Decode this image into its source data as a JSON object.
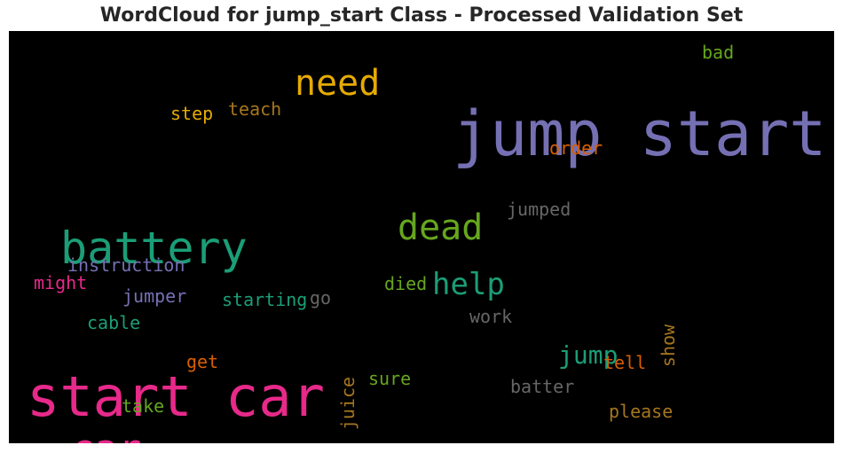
{
  "chart_data": {
    "type": "wordcloud",
    "title": "WordCloud for jump_start Class - Processed Validation Set",
    "background": "#000000",
    "words": [
      {
        "text": "jump start",
        "color": "#7570b3",
        "vertical": false
      },
      {
        "text": "start car",
        "color": "#e7298a",
        "vertical": false
      },
      {
        "text": "battery",
        "color": "#1b9e77",
        "vertical": false
      },
      {
        "text": "need",
        "color": "#e6ab02",
        "vertical": false
      },
      {
        "text": "dead",
        "color": "#66a61e",
        "vertical": false
      },
      {
        "text": "car",
        "color": "#e7298a",
        "vertical": false
      },
      {
        "text": "help",
        "color": "#1b9e77",
        "vertical": false
      },
      {
        "text": "jump",
        "color": "#1b9e77",
        "vertical": false
      },
      {
        "text": "bad",
        "color": "#66a61e",
        "vertical": false
      },
      {
        "text": "teach",
        "color": "#a6761d",
        "vertical": false
      },
      {
        "text": "step",
        "color": "#e6ab02",
        "vertical": false
      },
      {
        "text": "order",
        "color": "#d95f02",
        "vertical": false
      },
      {
        "text": "jumped",
        "color": "#666666",
        "vertical": false
      },
      {
        "text": "instruction",
        "color": "#7570b3",
        "vertical": false
      },
      {
        "text": "might",
        "color": "#e7298a",
        "vertical": false
      },
      {
        "text": "jumper",
        "color": "#7570b3",
        "vertical": false
      },
      {
        "text": "starting",
        "color": "#1b9e77",
        "vertical": false
      },
      {
        "text": "go",
        "color": "#666666",
        "vertical": false
      },
      {
        "text": "died",
        "color": "#66a61e",
        "vertical": false
      },
      {
        "text": "cable",
        "color": "#1b9e77",
        "vertical": false
      },
      {
        "text": "work",
        "color": "#666666",
        "vertical": false
      },
      {
        "text": "show",
        "color": "#a6761d",
        "vertical": true
      },
      {
        "text": "get",
        "color": "#d95f02",
        "vertical": false
      },
      {
        "text": "juice",
        "color": "#a6761d",
        "vertical": true
      },
      {
        "text": "tell",
        "color": "#d95f02",
        "vertical": false
      },
      {
        "text": "sure",
        "color": "#66a61e",
        "vertical": false
      },
      {
        "text": "batter",
        "color": "#666666",
        "vertical": false
      },
      {
        "text": "take",
        "color": "#66a61e",
        "vertical": false
      },
      {
        "text": "please",
        "color": "#a6761d",
        "vertical": false
      }
    ]
  }
}
